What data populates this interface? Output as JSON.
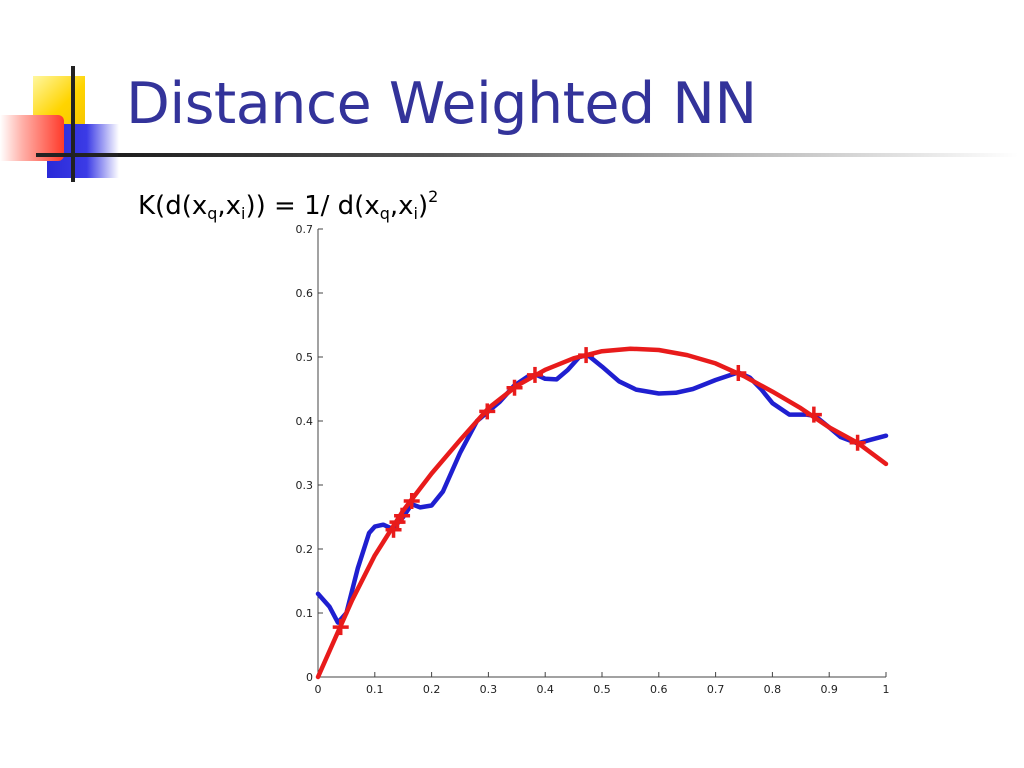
{
  "slide": {
    "title": "Distance Weighted NN",
    "formula": {
      "k_open": "K(d(x",
      "sub_q1": "q",
      "comma1": ",x",
      "sub_i1": "i",
      "mid": ")) = 1/ d(x",
      "sub_q2": "q",
      "comma2": ",x",
      "sub_i2": "i",
      "close": ")",
      "sup": "2"
    }
  },
  "colors": {
    "title": "#33339a",
    "series_blue": "#1f1fd0",
    "series_red": "#e81b1b",
    "points": "#e81b1b"
  },
  "chart_data": {
    "type": "line",
    "title": "",
    "xlabel": "",
    "ylabel": "",
    "xlim": [
      0,
      1
    ],
    "ylim": [
      0,
      0.7
    ],
    "xticks": [
      "0",
      "0.1",
      "0.2",
      "0.3",
      "0.4",
      "0.5",
      "0.6",
      "0.7",
      "0.8",
      "0.9",
      "1"
    ],
    "yticks": [
      "0",
      "0.1",
      "0.2",
      "0.3",
      "0.4",
      "0.5",
      "0.6",
      "0.7"
    ],
    "grid": false,
    "series": [
      {
        "color": "#1f1fd0",
        "style": "line",
        "x": [
          0,
          0.02,
          0.035,
          0.05,
          0.07,
          0.09,
          0.1,
          0.115,
          0.13,
          0.14,
          0.15,
          0.165,
          0.18,
          0.2,
          0.22,
          0.25,
          0.28,
          0.3,
          0.32,
          0.345,
          0.37,
          0.385,
          0.4,
          0.42,
          0.44,
          0.46,
          0.475,
          0.5,
          0.53,
          0.56,
          0.6,
          0.63,
          0.66,
          0.7,
          0.74,
          0.76,
          0.78,
          0.8,
          0.83,
          0.86,
          0.875,
          0.9,
          0.92,
          0.95,
          0.97,
          1.0
        ],
        "y": [
          0.13,
          0.11,
          0.085,
          0.1,
          0.17,
          0.225,
          0.235,
          0.238,
          0.232,
          0.24,
          0.25,
          0.27,
          0.265,
          0.268,
          0.29,
          0.35,
          0.4,
          0.415,
          0.43,
          0.455,
          0.47,
          0.472,
          0.466,
          0.465,
          0.48,
          0.5,
          0.503,
          0.485,
          0.462,
          0.449,
          0.443,
          0.444,
          0.45,
          0.464,
          0.476,
          0.468,
          0.45,
          0.428,
          0.41,
          0.41,
          0.408,
          0.39,
          0.375,
          0.365,
          0.37,
          0.377
        ]
      },
      {
        "color": "#e81b1b",
        "style": "line",
        "x": [
          0,
          0.03,
          0.06,
          0.1,
          0.15,
          0.2,
          0.25,
          0.3,
          0.35,
          0.4,
          0.45,
          0.5,
          0.55,
          0.6,
          0.65,
          0.7,
          0.75,
          0.8,
          0.85,
          0.9,
          0.95,
          1.0
        ],
        "y": [
          0,
          0.06,
          0.12,
          0.19,
          0.26,
          0.318,
          0.37,
          0.42,
          0.455,
          0.48,
          0.498,
          0.509,
          0.513,
          0.511,
          0.503,
          0.49,
          0.47,
          0.446,
          0.42,
          0.39,
          0.366,
          0.333
        ]
      },
      {
        "color": "#e81b1b",
        "style": "markers",
        "marker": "plus",
        "x": [
          0.04,
          0.133,
          0.14,
          0.148,
          0.165,
          0.298,
          0.346,
          0.382,
          0.472,
          0.74,
          0.873,
          0.95
        ],
        "y": [
          0.078,
          0.23,
          0.242,
          0.252,
          0.275,
          0.415,
          0.452,
          0.472,
          0.503,
          0.475,
          0.41,
          0.366
        ]
      }
    ]
  }
}
